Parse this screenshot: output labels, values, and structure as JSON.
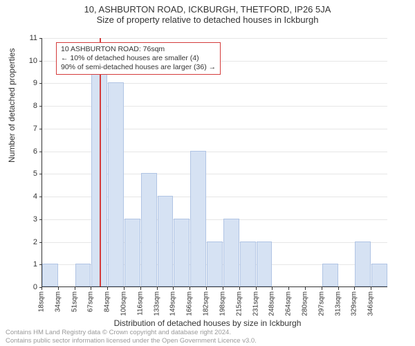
{
  "title": {
    "line1": "10, ASHBURTON ROAD, ICKBURGH, THETFORD, IP26 5JA",
    "line2": "Size of property relative to detached houses in Ickburgh",
    "fontsize": 13,
    "color": "#333333"
  },
  "chart": {
    "type": "histogram",
    "background_color": "#ffffff",
    "grid_color": "#e6e6e6",
    "axis_color": "#333333",
    "bar_fill": "#d6e2f3",
    "bar_border": "#b0c4e4",
    "ylim": [
      0,
      11
    ],
    "ytick_step": 1,
    "xtick_labels": [
      "18sqm",
      "34sqm",
      "51sqm",
      "67sqm",
      "84sqm",
      "100sqm",
      "116sqm",
      "133sqm",
      "149sqm",
      "166sqm",
      "182sqm",
      "198sqm",
      "215sqm",
      "231sqm",
      "248sqm",
      "264sqm",
      "280sqm",
      "297sqm",
      "313sqm",
      "329sqm",
      "346sqm"
    ],
    "bars": [
      {
        "x": 0,
        "h": 1
      },
      {
        "x": 2,
        "h": 1
      },
      {
        "x": 3,
        "h": 10
      },
      {
        "x": 4,
        "h": 9
      },
      {
        "x": 5,
        "h": 3
      },
      {
        "x": 6,
        "h": 5
      },
      {
        "x": 7,
        "h": 4
      },
      {
        "x": 8,
        "h": 3
      },
      {
        "x": 9,
        "h": 6
      },
      {
        "x": 10,
        "h": 2
      },
      {
        "x": 11,
        "h": 3
      },
      {
        "x": 12,
        "h": 2
      },
      {
        "x": 13,
        "h": 2
      },
      {
        "x": 17,
        "h": 1
      },
      {
        "x": 19,
        "h": 2
      },
      {
        "x": 20,
        "h": 1
      }
    ],
    "label_fontsize": 11,
    "tick_fontsize": 10
  },
  "axes": {
    "ylabel": "Number of detached properties",
    "xlabel": "Distribution of detached houses by size in Ickburgh"
  },
  "marker": {
    "position_bin": 3.5,
    "color": "#d43b3b",
    "line_width": 2
  },
  "annotation": {
    "lines": [
      "10 ASHBURTON ROAD: 76sqm",
      "← 10% of detached houses are smaller (4)",
      "90% of semi-detached houses are larger (36) →"
    ],
    "border_color": "#d43b3b",
    "background": "#ffffff",
    "fontsize": 10.5
  },
  "footer": {
    "line1": "Contains HM Land Registry data © Crown copyright and database right 2024.",
    "line2": "Contains public sector information licensed under the Open Government Licence v3.0.",
    "color": "#9a9a9a",
    "fontsize": 9.5
  }
}
